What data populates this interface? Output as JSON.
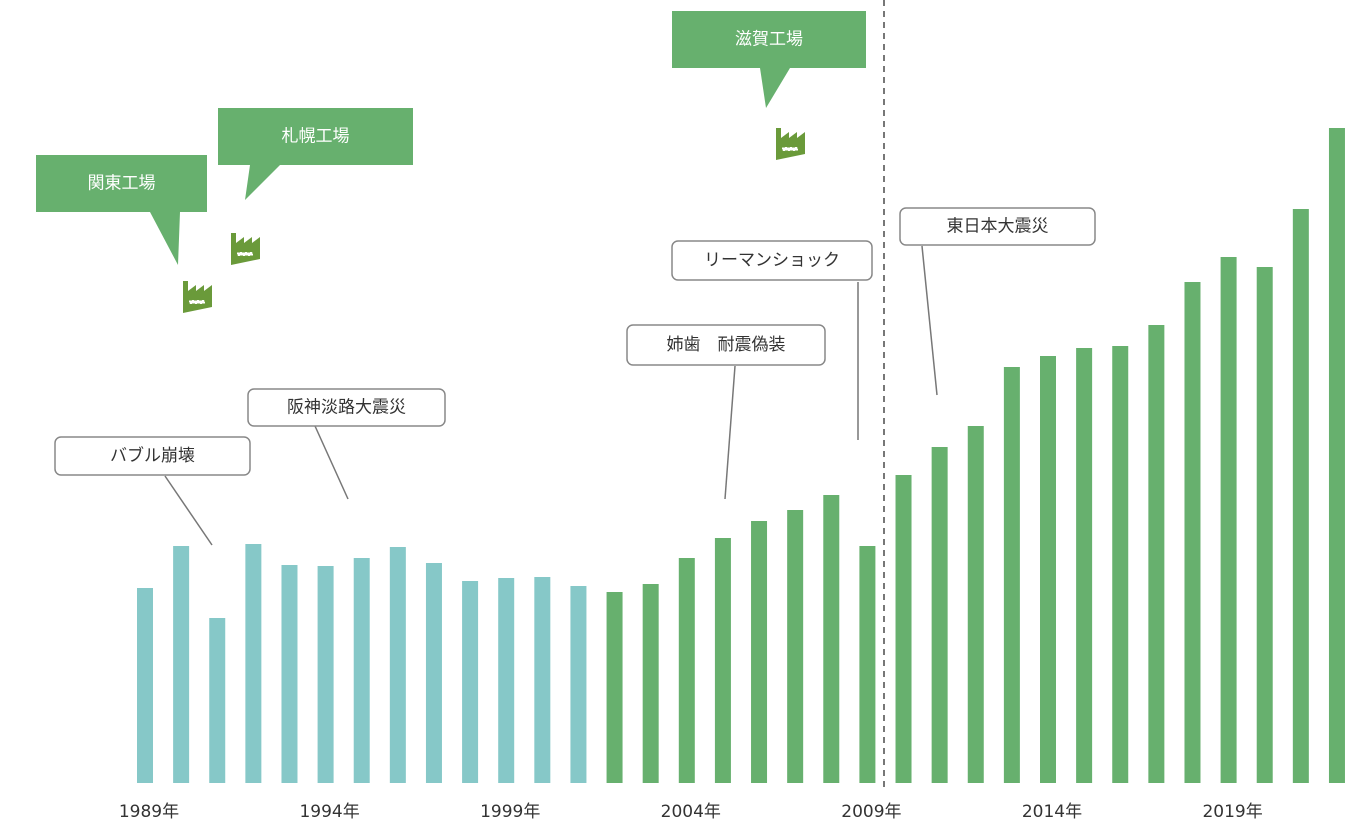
{
  "chart_data": {
    "type": "bar",
    "categories": [
      "1989年",
      null,
      null,
      null,
      null,
      "1994年",
      null,
      null,
      null,
      null,
      "1999年",
      null,
      null,
      null,
      null,
      "2004年",
      null,
      null,
      null,
      null,
      "2009年",
      null,
      null,
      null,
      null,
      "2014年",
      null,
      null,
      null,
      null,
      "2019年",
      null,
      null,
      null
    ],
    "values": [
      195,
      237,
      165,
      239,
      218,
      217,
      225,
      236,
      220,
      202,
      205,
      206,
      197,
      191,
      199,
      225,
      245,
      262,
      273,
      288,
      237,
      308,
      336,
      357,
      416,
      427,
      435,
      437,
      458,
      501,
      526,
      516,
      574,
      655
    ],
    "colors": [
      "#86c8c8",
      "#86c8c8",
      "#86c8c8",
      "#86c8c8",
      "#86c8c8",
      "#86c8c8",
      "#86c8c8",
      "#86c8c8",
      "#86c8c8",
      "#86c8c8",
      "#86c8c8",
      "#86c8c8",
      "#86c8c8",
      "#67b06e",
      "#67b06e",
      "#67b06e",
      "#67b06e",
      "#67b06e",
      "#67b06e",
      "#67b06e",
      "#67b06e",
      "#67b06e",
      "#67b06e",
      "#67b06e",
      "#67b06e",
      "#67b06e",
      "#67b06e",
      "#67b06e",
      "#67b06e",
      "#67b06e",
      "#67b06e",
      "#67b06e",
      "#67b06e",
      "#67b06e"
    ],
    "ylim": [
      0,
      655
    ],
    "annotations": [
      "バブル崩壊",
      "阪神淡路大震災",
      "姉歯　耐震偽装",
      "リーマンショック",
      "東日本大震災"
    ],
    "factories": [
      "関東工場",
      "札幌工場",
      "滋賀工場"
    ]
  }
}
